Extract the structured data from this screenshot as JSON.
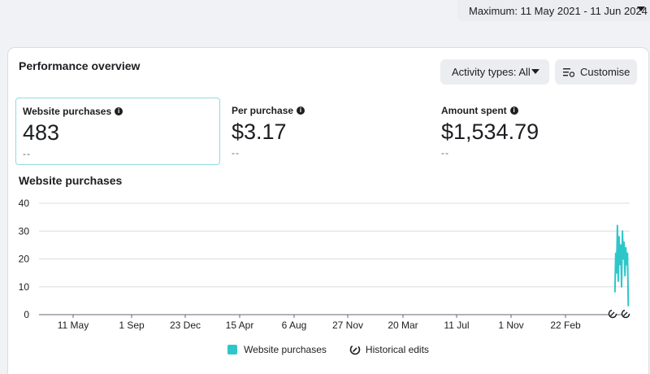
{
  "date_range": {
    "label": "Maximum: 11 May 2021 - 11 Jun 2024"
  },
  "card": {
    "title": "Performance overview",
    "activity_button": "Activity types: All",
    "customise_button": "Customise"
  },
  "metrics": [
    {
      "label": "Website purchases",
      "value": "483",
      "sub": "--",
      "selected": true
    },
    {
      "label": "Per purchase",
      "value": "$3.17",
      "sub": "--",
      "selected": false
    },
    {
      "label": "Amount spent",
      "value": "$1,534.79",
      "sub": "--",
      "selected": false
    }
  ],
  "chart_title": "Website purchases",
  "chart_data": {
    "type": "line",
    "title": "Website purchases",
    "ylim": [
      0,
      40
    ],
    "yticks": [
      0,
      10,
      20,
      30,
      40
    ],
    "xticks": [
      "11 May",
      "1 Sep",
      "23 Dec",
      "15 Apr",
      "6 Aug",
      "27 Nov",
      "20 Mar",
      "11 Jul",
      "1 Nov",
      "22 Feb"
    ],
    "series": [
      {
        "name": "Website purchases",
        "color": "#2ec7c9",
        "x_range": [
          0.9752,
          0.9977
        ],
        "values": [
          8,
          22,
          15,
          32,
          12,
          28,
          18,
          25,
          10,
          30,
          20,
          26,
          14,
          24,
          18,
          22,
          3
        ]
      }
    ],
    "historical_edit_markers": [
      0.97,
      0.99
    ],
    "legend": [
      "Website purchases",
      "Historical edits"
    ]
  },
  "colors": {
    "accent": "#2ec7c9",
    "selected_border": "#8fdbe0"
  }
}
